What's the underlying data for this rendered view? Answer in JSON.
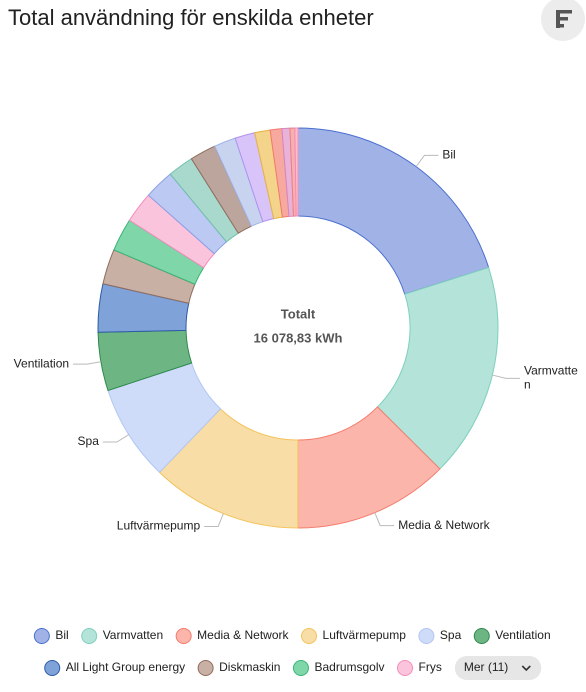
{
  "header": {
    "title": "Total användning för enskilda enheter"
  },
  "chart_data": {
    "type": "donut",
    "center_title": "Totalt",
    "center_value": "16 078,83 kWh",
    "categories": [
      "Bil",
      "Varmvatten",
      "Media & Network",
      "Luftvärmepump",
      "Spa",
      "Ventilation",
      "All Light Group energy",
      "Diskmaskin",
      "Badrumsgolv",
      "Frys",
      null,
      null,
      null,
      null,
      null,
      null,
      null,
      null,
      null,
      null
    ],
    "values": [
      3234,
      2787,
      2019,
      1956,
      1250,
      759,
      625,
      456,
      429,
      402,
      389,
      335,
      339,
      281,
      259,
      201,
      152,
      103,
      63,
      40
    ],
    "colors": [
      "#a1b3e6",
      "#b3e3d9",
      "#fcb5ab",
      "#f9dda6",
      "#cfdcf9",
      "#6eb584",
      "#7fa2d9",
      "#c9b0a5",
      "#7fd6a9",
      "#fbc4dd",
      "#bcc9f2",
      "#a9d8cc",
      "#bca59c",
      "#c8d3f0",
      "#d8c4f8",
      "#f3d48a",
      "#f7a9a0",
      "#e9b3d9",
      "#f5b0b0",
      "#ffc0cb"
    ],
    "strokes": [
      "#4a6fd0",
      "#80cfbd",
      "#f47a6b",
      "#f2c35a",
      "#b0c6f2",
      "#2f8a4c",
      "#2d5ba8",
      "#8f6c5d",
      "#38b578",
      "#f48cbb",
      "#8aa0e6",
      "#6fc0ab",
      "#8f6c5d",
      "#9fb3e6",
      "#b191f0",
      "#e5b444",
      "#f07a6b",
      "#d587c0",
      "#ee8080",
      "#f48cbb"
    ],
    "more_button": "Mer (11)"
  }
}
